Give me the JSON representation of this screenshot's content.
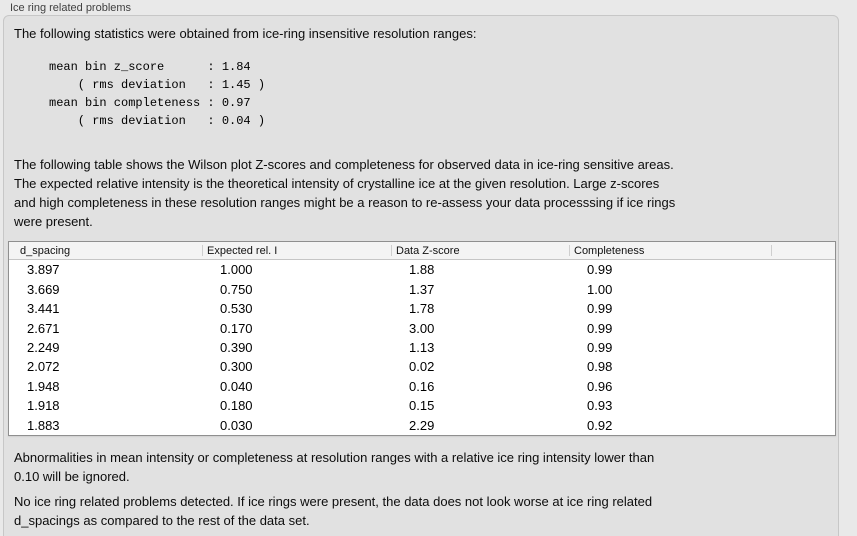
{
  "panel": {
    "title": "Ice ring related problems",
    "intro": "The following statistics were obtained from ice-ring insensitive resolution ranges:",
    "stats_block": "mean bin z_score      : 1.84\n    ( rms deviation   : 1.45 )\nmean bin completeness : 0.97\n    ( rms deviation   : 0.04 )",
    "description": "The following table shows the Wilson plot Z-scores and completeness for observed data in ice-ring sensitive areas.\nThe expected relative intensity is the theoretical intensity of crystalline ice at the given resolution. Large z-scores\nand high completeness in these resolution ranges might be a reason to re-assess your data processsing if ice rings\nwere present.",
    "note_ignored": "Abnormalities in mean intensity or completeness at resolution ranges with a relative ice ring intensity lower than\n0.10 will be ignored.",
    "conclusion": "No ice ring related problems detected. If ice rings were present, the data does not look worse at ice ring related\nd_spacings as compared to the rest of the data set."
  },
  "table": {
    "columns": [
      "d_spacing",
      "Expected rel. I",
      "Data Z-score",
      "Completeness"
    ],
    "rows": [
      [
        "3.897",
        "1.000",
        "1.88",
        "0.99"
      ],
      [
        "3.669",
        "0.750",
        "1.37",
        "1.00"
      ],
      [
        "3.441",
        "0.530",
        "1.78",
        "0.99"
      ],
      [
        "2.671",
        "0.170",
        "3.00",
        "0.99"
      ],
      [
        "2.249",
        "0.390",
        "1.13",
        "0.99"
      ],
      [
        "2.072",
        "0.300",
        "0.02",
        "0.98"
      ],
      [
        "1.948",
        "0.040",
        "0.16",
        "0.96"
      ],
      [
        "1.918",
        "0.180",
        "0.15",
        "0.93"
      ],
      [
        "1.883",
        "0.030",
        "2.29",
        "0.92"
      ]
    ]
  },
  "colors": {
    "window_background": "#e9e9e9",
    "panel_background": "#e1e1e1",
    "table_background": "#ffffff",
    "table_border": "#8f8f8f",
    "header_background": "#f4f4f4"
  }
}
